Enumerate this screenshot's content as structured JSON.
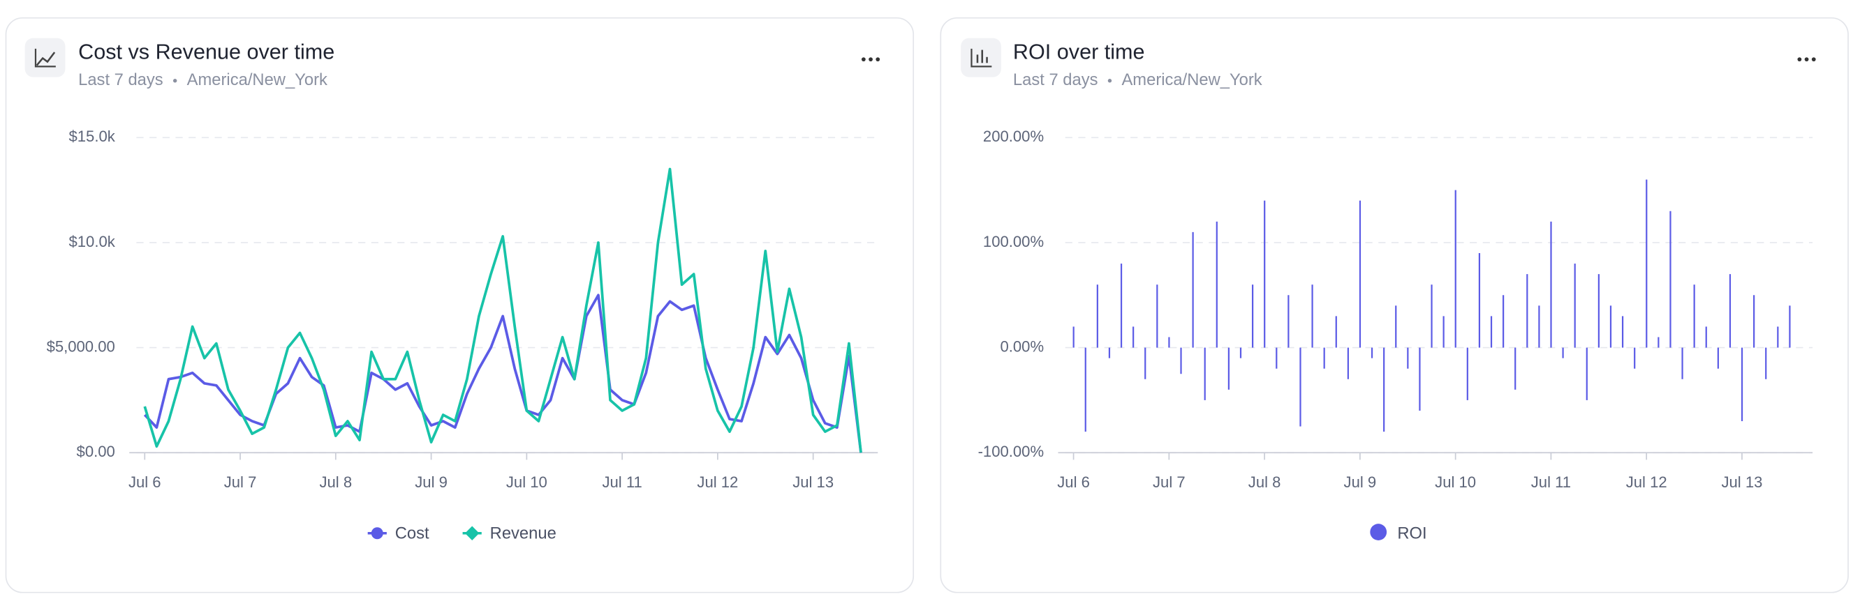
{
  "chart_data": [
    {
      "type": "line",
      "title": "Cost vs Revenue over time",
      "subtitle": "Last 7 days",
      "timezone": "America/New_York",
      "categories": [
        "Jul 6",
        null,
        null,
        null,
        null,
        null,
        null,
        null,
        "Jul 7",
        null,
        null,
        null,
        null,
        null,
        null,
        null,
        "Jul 8",
        null,
        null,
        null,
        null,
        null,
        null,
        null,
        "Jul 9",
        null,
        null,
        null,
        null,
        null,
        null,
        null,
        "Jul 10",
        null,
        null,
        null,
        null,
        null,
        null,
        null,
        "Jul 11",
        null,
        null,
        null,
        null,
        null,
        null,
        null,
        "Jul 12",
        null,
        null,
        null,
        null,
        null,
        null,
        null,
        "Jul 13",
        null,
        null,
        null,
        null
      ],
      "series": [
        {
          "name": "Cost",
          "color": "#5b5be6",
          "values": [
            1800,
            1200,
            3500,
            3600,
            3800,
            3300,
            3200,
            2500,
            1800,
            1500,
            1300,
            2800,
            3300,
            4500,
            3600,
            3200,
            1200,
            1300,
            1000,
            3800,
            3500,
            3000,
            3300,
            2200,
            1300,
            1500,
            1200,
            2800,
            4000,
            5000,
            6500,
            4000,
            2000,
            1800,
            2500,
            4500,
            3500,
            6500,
            7500,
            3000,
            2500,
            2300,
            3800,
            6500,
            7200,
            6800,
            7000,
            4500,
            3000,
            1600,
            1500,
            3300,
            5500,
            4700,
            5600,
            4500,
            2500,
            1400,
            1200,
            4600,
            0
          ]
        },
        {
          "name": "Revenue",
          "color": "#17c3a8",
          "values": [
            2200,
            300,
            1500,
            3500,
            6000,
            4500,
            5200,
            3000,
            2000,
            900,
            1200,
            3000,
            5000,
            5700,
            4500,
            3000,
            800,
            1500,
            600,
            4800,
            3500,
            3500,
            4800,
            2500,
            500,
            1800,
            1500,
            3500,
            6500,
            8500,
            10300,
            6000,
            2000,
            1500,
            3500,
            5500,
            3500,
            7000,
            10000,
            2500,
            2000,
            2300,
            4500,
            10000,
            13500,
            8000,
            8500,
            4000,
            2000,
            1000,
            2200,
            5000,
            9600,
            4800,
            7800,
            5500,
            1800,
            1000,
            1300,
            5200,
            0
          ]
        }
      ],
      "ylim": [
        0,
        15000
      ],
      "yticks": [
        {
          "value": 0,
          "label": "$0.00"
        },
        {
          "value": 5000,
          "label": "$5,000.00"
        },
        {
          "value": 10000,
          "label": "$10.0k"
        },
        {
          "value": 15000,
          "label": "$15.0k"
        }
      ],
      "grid": true
    },
    {
      "type": "bar",
      "title": "ROI over time",
      "subtitle": "Last 7 days",
      "timezone": "America/New_York",
      "categories": [
        "Jul 6",
        null,
        null,
        null,
        null,
        null,
        null,
        null,
        "Jul 7",
        null,
        null,
        null,
        null,
        null,
        null,
        null,
        "Jul 8",
        null,
        null,
        null,
        null,
        null,
        null,
        null,
        "Jul 9",
        null,
        null,
        null,
        null,
        null,
        null,
        null,
        "Jul 10",
        null,
        null,
        null,
        null,
        null,
        null,
        null,
        "Jul 11",
        null,
        null,
        null,
        null,
        null,
        null,
        null,
        "Jul 12",
        null,
        null,
        null,
        null,
        null,
        null,
        null,
        "Jul 13",
        null,
        null,
        null,
        null
      ],
      "series": [
        {
          "name": "ROI",
          "color": "#5b5be6",
          "values": [
            20,
            -80,
            60,
            -10,
            80,
            20,
            -30,
            60,
            10,
            -25,
            110,
            -50,
            120,
            -40,
            -10,
            60,
            140,
            -20,
            50,
            -75,
            60,
            -20,
            30,
            -30,
            140,
            -10,
            -80,
            40,
            -20,
            -60,
            60,
            30,
            150,
            -50,
            90,
            30,
            50,
            -40,
            70,
            40,
            120,
            -10,
            80,
            -50,
            70,
            40,
            30,
            -20,
            160,
            10,
            130,
            -30,
            60,
            20,
            -20,
            70,
            -70,
            50,
            -30,
            20,
            40
          ]
        }
      ],
      "ylim": [
        -100,
        200
      ],
      "yticks": [
        {
          "value": -100,
          "label": "-100.00%"
        },
        {
          "value": 0,
          "label": "0.00%"
        },
        {
          "value": 100,
          "label": "100.00%"
        },
        {
          "value": 200,
          "label": "200.00%"
        }
      ],
      "grid": true
    }
  ]
}
